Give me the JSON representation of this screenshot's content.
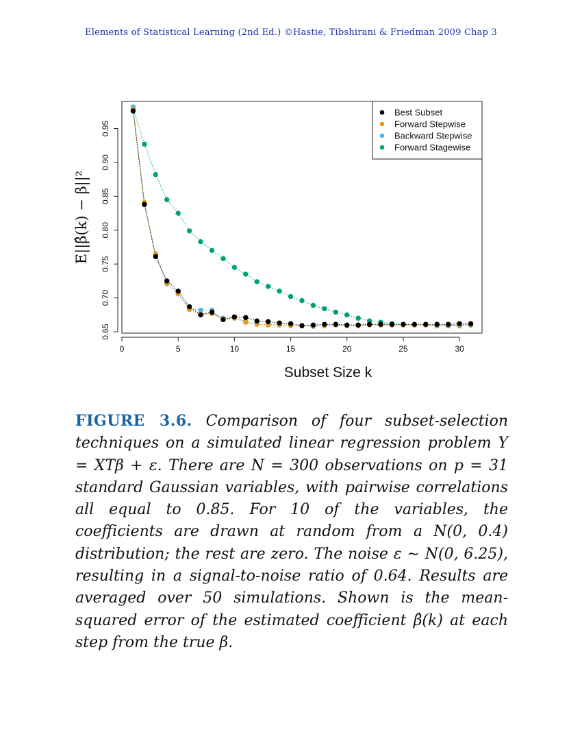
{
  "header": {
    "running_title": "Elements of Statistical Learning (2nd Ed.) ©Hastie, Tibshirani & Friedman 2009  Chap 3"
  },
  "chart_data": {
    "type": "scatter",
    "xlabel": "Subset Size k",
    "ylabel": "E||β̂(k) − β||²",
    "xlim": [
      0,
      32
    ],
    "ylim": [
      0.648,
      0.99
    ],
    "x_ticks": [
      0,
      5,
      10,
      15,
      20,
      25,
      30
    ],
    "y_ticks": [
      0.65,
      0.7,
      0.75,
      0.8,
      0.85,
      0.9,
      0.95
    ],
    "y_tick_labels": [
      "0.65",
      "0.70",
      "0.75",
      "0.80",
      "0.85",
      "0.90",
      "0.95"
    ],
    "grid": false,
    "legend_position": "top-right",
    "series": [
      {
        "name": "Forward Stagewise",
        "color": "#00a07a",
        "x": [
          1,
          2,
          3,
          4,
          5,
          6,
          7,
          8,
          9,
          10,
          11,
          12,
          13,
          14,
          15,
          16,
          17,
          18,
          19,
          20,
          21,
          22,
          23,
          24,
          25,
          26,
          27,
          28,
          29,
          30,
          31
        ],
        "values": [
          0.98,
          0.927,
          0.882,
          0.845,
          0.825,
          0.799,
          0.783,
          0.77,
          0.758,
          0.745,
          0.735,
          0.724,
          0.717,
          0.71,
          0.702,
          0.696,
          0.689,
          0.684,
          0.679,
          0.675,
          0.67,
          0.666,
          0.664,
          0.662,
          0.661,
          0.66,
          0.66,
          0.659,
          0.659,
          0.659,
          0.66
        ]
      },
      {
        "name": "Backward Stepwise",
        "color": "#4ab8e8",
        "x": [
          1,
          2,
          3,
          4,
          5,
          6,
          7,
          8,
          9,
          10,
          11,
          12,
          13,
          14,
          15,
          16,
          17,
          18,
          19,
          20,
          21,
          22,
          23,
          24,
          25,
          26,
          27,
          28,
          29,
          30,
          31
        ],
        "values": [
          0.982,
          0.84,
          0.763,
          0.721,
          0.707,
          0.684,
          0.682,
          0.682,
          0.67,
          0.671,
          0.665,
          0.662,
          0.661,
          0.66,
          0.659,
          0.659,
          0.658,
          0.659,
          0.66,
          0.659,
          0.659,
          0.66,
          0.66,
          0.66,
          0.66,
          0.66,
          0.66,
          0.66,
          0.66,
          0.66,
          0.661
        ]
      },
      {
        "name": "Forward Stepwise",
        "color": "#e69a1c",
        "x": [
          1,
          2,
          3,
          4,
          5,
          6,
          7,
          8,
          9,
          10,
          11,
          12,
          13,
          14,
          15,
          16,
          17,
          18,
          19,
          20,
          21,
          22,
          23,
          24,
          25,
          26,
          27,
          28,
          29,
          30,
          31
        ],
        "values": [
          0.978,
          0.841,
          0.765,
          0.722,
          0.706,
          0.683,
          0.676,
          0.677,
          0.669,
          0.67,
          0.664,
          0.661,
          0.66,
          0.66,
          0.659,
          0.659,
          0.659,
          0.659,
          0.66,
          0.659,
          0.659,
          0.66,
          0.66,
          0.66,
          0.66,
          0.66,
          0.66,
          0.66,
          0.66,
          0.66,
          0.661
        ]
      },
      {
        "name": "Best Subset",
        "color": "#000000",
        "x": [
          1,
          2,
          3,
          4,
          5,
          6,
          7,
          8,
          9,
          10,
          11,
          12,
          13,
          14,
          15,
          16,
          17,
          18,
          19,
          20,
          21,
          22,
          23,
          24,
          25,
          26,
          27,
          28,
          29,
          30,
          31
        ],
        "values": [
          0.976,
          0.838,
          0.761,
          0.725,
          0.71,
          0.687,
          0.675,
          0.679,
          0.668,
          0.672,
          0.671,
          0.666,
          0.665,
          0.663,
          0.662,
          0.659,
          0.66,
          0.661,
          0.661,
          0.66,
          0.66,
          0.661,
          0.661,
          0.661,
          0.661,
          0.661,
          0.661,
          0.661,
          0.661,
          0.662,
          0.662
        ]
      }
    ],
    "legend_order": [
      "Best Subset",
      "Forward Stepwise",
      "Backward Stepwise",
      "Forward Stagewise"
    ]
  },
  "caption": {
    "label": "FIGURE 3.6.",
    "text": "Comparison of four subset-selection techniques on a simulated linear regression problem Y = XTβ + ε. There are N = 300 observations on p = 31 standard Gaussian variables, with pairwise correlations all equal to 0.85. For 10 of the variables, the coefficients are drawn at random from a N(0, 0.4) distribution; the rest are zero. The noise ε ∼ N(0, 6.25), resulting in a signal-to-noise ratio of 0.64. Results are averaged over 50 simulations. Shown is the mean-squared error of the estimated coefficient β̂(k) at each step from the true β."
  }
}
